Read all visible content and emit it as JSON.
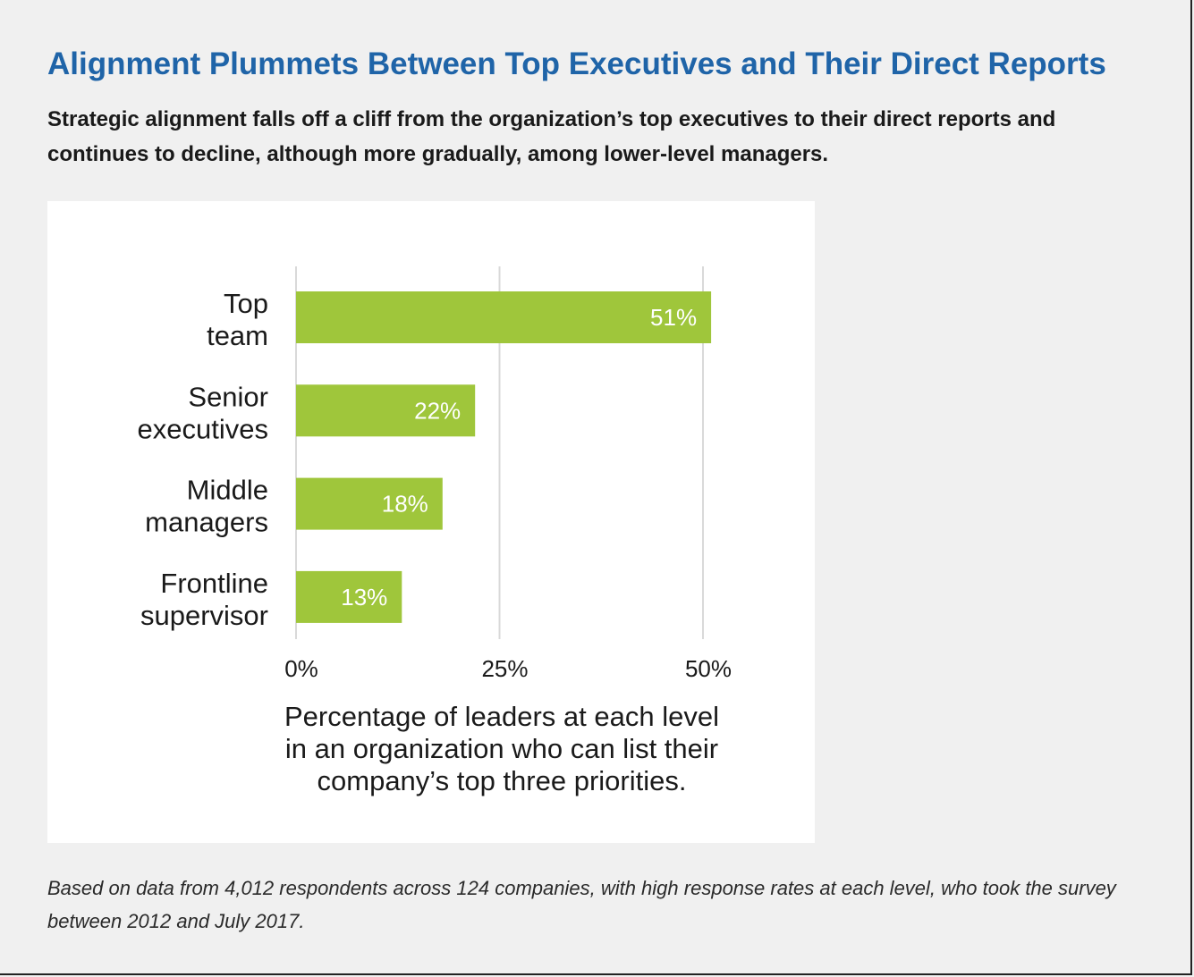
{
  "title": "Alignment Plummets Between Top Executives and Their Direct Reports",
  "subtitle": "Strategic alignment falls off a cliff from the organization’s top executives to their direct reports and continues to decline, although more gradually, among lower-level managers.",
  "footnote": "Based on data from 4,012 respondents across 124 companies, with high response rates at each level, who took the survey between 2012 and July 2017.",
  "colors": {
    "bar": "#9fc63b",
    "title": "#1f64a8",
    "grid": "#d9d9d9",
    "background": "#f0f0f0",
    "panel": "#ffffff"
  },
  "chart_data": {
    "type": "bar",
    "orientation": "horizontal",
    "categories": [
      [
        "Top",
        "team"
      ],
      [
        "Senior",
        "executives"
      ],
      [
        "Middle",
        "managers"
      ],
      [
        "Frontline",
        "supervisor"
      ]
    ],
    "values": [
      51,
      22,
      18,
      13
    ],
    "data_labels": [
      "51%",
      "22%",
      "18%",
      "13%"
    ],
    "xlim": [
      0,
      50
    ],
    "xticks": [
      0,
      25,
      50
    ],
    "xtick_labels": [
      "0%",
      "25%",
      "50%"
    ],
    "xlabel": [
      "Percentage of leaders at each level",
      "in an organization who can list their",
      "company’s top three priorities."
    ],
    "grid": true,
    "legend": "none"
  }
}
